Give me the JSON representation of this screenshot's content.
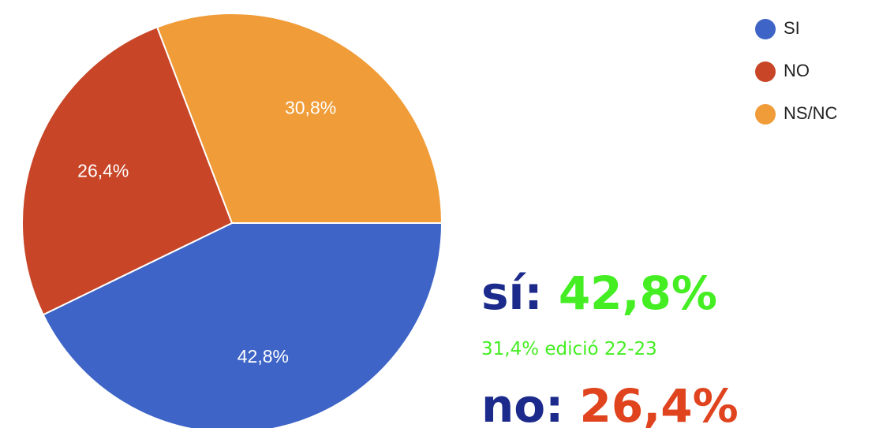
{
  "chart_data": {
    "type": "pie",
    "categories": [
      "SI",
      "NO",
      "NS/NC"
    ],
    "values": [
      42.8,
      26.4,
      30.8
    ],
    "value_labels": [
      "42,8%",
      "26,4%",
      "30,8%"
    ],
    "colors": [
      "#3d64c6",
      "#c84527",
      "#f09c38"
    ],
    "legend": "top-right",
    "annotations": [
      "sí:",
      "42,8%",
      "31,4% edició 22-23",
      "no:",
      "26,4%"
    ]
  }
}
